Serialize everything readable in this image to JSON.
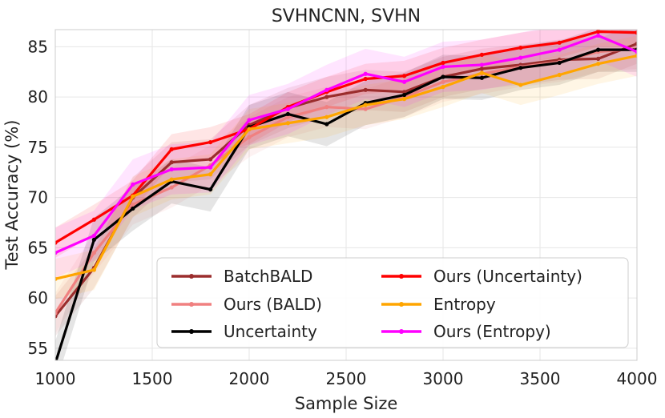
{
  "chart_data": {
    "type": "line",
    "title": "SVHNCNN, SVHN",
    "xlabel": "Sample Size",
    "ylabel": "Test Accuracy (%)",
    "xlim": [
      1000,
      4000
    ],
    "ylim": [
      53.8,
      86.7
    ],
    "xticks": [
      1000,
      1500,
      2000,
      2500,
      3000,
      3500,
      4000
    ],
    "yticks": [
      55,
      60,
      65,
      70,
      75,
      80,
      85
    ],
    "grid": true,
    "legend_position": "lower-right",
    "x": [
      1000,
      1200,
      1400,
      1600,
      1800,
      2000,
      2200,
      2400,
      2600,
      2800,
      3000,
      3200,
      3400,
      3600,
      3800,
      4000
    ],
    "series": [
      {
        "name": "BatchBALD",
        "color": "#9b2d2d",
        "band": 2.0,
        "values": [
          58.2,
          63.0,
          70.0,
          73.5,
          73.8,
          77.2,
          78.9,
          80.0,
          80.7,
          80.5,
          82.0,
          82.8,
          83.2,
          83.7,
          83.8,
          85.3
        ]
      },
      {
        "name": "Ours (BALD)",
        "color": "#f08080",
        "band": 2.0,
        "values": [
          58.5,
          64.5,
          69.3,
          71.0,
          73.2,
          76.0,
          78.0,
          79.0,
          78.8,
          80.0,
          81.5,
          82.3,
          83.0,
          83.5,
          84.5,
          84.8
        ]
      },
      {
        "name": "Uncertainty",
        "color": "#000000",
        "band": 2.2,
        "values": [
          53.5,
          65.8,
          68.9,
          71.6,
          70.8,
          77.0,
          78.3,
          77.3,
          79.4,
          80.2,
          82.0,
          81.9,
          82.9,
          83.4,
          84.7,
          84.7
        ]
      },
      {
        "name": "Ours (Uncertainty)",
        "color": "#ff0000",
        "band": 1.5,
        "values": [
          65.5,
          67.8,
          70.2,
          74.8,
          75.5,
          76.8,
          79.0,
          80.5,
          81.8,
          82.1,
          83.4,
          84.2,
          84.9,
          85.4,
          86.5,
          86.4
        ]
      },
      {
        "name": "Entropy",
        "color": "#ffa500",
        "band": 2.0,
        "values": [
          61.9,
          62.8,
          70.1,
          71.8,
          72.3,
          76.8,
          77.4,
          78.0,
          79.2,
          79.8,
          81.0,
          82.4,
          81.2,
          82.2,
          83.3,
          84.1
        ]
      },
      {
        "name": "Ours (Entropy)",
        "color": "#ff00ff",
        "band": 2.5,
        "values": [
          64.5,
          66.2,
          71.3,
          72.8,
          73.0,
          77.7,
          78.8,
          80.7,
          82.3,
          81.5,
          83.0,
          83.2,
          83.9,
          84.7,
          86.1,
          84.5
        ]
      }
    ]
  }
}
